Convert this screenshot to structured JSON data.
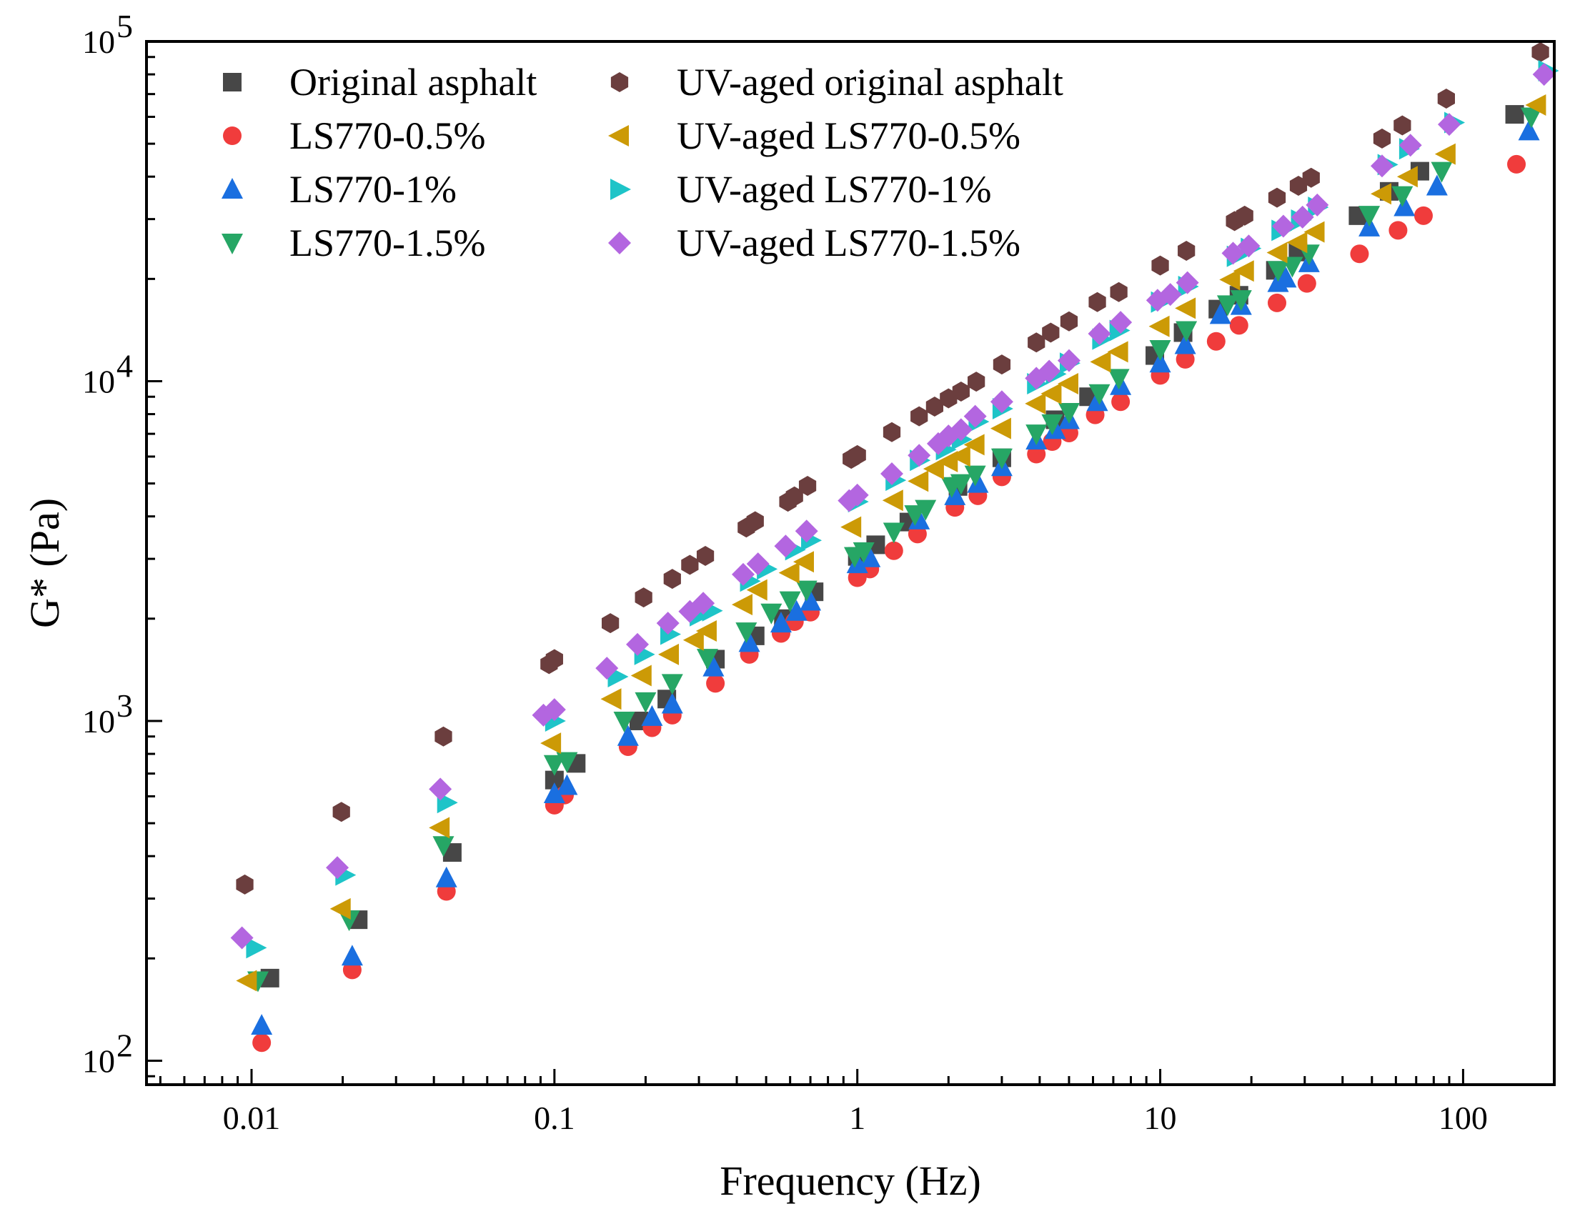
{
  "chart_data": {
    "type": "scatter",
    "xlabel": "Frequency (Hz)",
    "ylabel": "G* (Pa)",
    "xscale": "log",
    "yscale": "log",
    "xlim": [
      0.0045,
      200
    ],
    "ylim": [
      85,
      100000
    ],
    "x_ticks": [
      {
        "value": 0.01,
        "label": "0.01"
      },
      {
        "value": 0.1,
        "label": "0.1"
      },
      {
        "value": 1,
        "label": "1"
      },
      {
        "value": 10,
        "label": "10"
      },
      {
        "value": 100,
        "label": "100"
      }
    ],
    "y_ticks": [
      {
        "value": 100,
        "base": "10",
        "exp": "2"
      },
      {
        "value": 1000,
        "base": "10",
        "exp": "3"
      },
      {
        "value": 10000,
        "base": "10",
        "exp": "4"
      },
      {
        "value": 100000,
        "base": "10",
        "exp": "5"
      }
    ],
    "legend_position": "top-left, two columns",
    "series": [
      {
        "name": "Original asphalt",
        "marker": "square",
        "color": "#474747",
        "points": [
          [
            0.0115,
            175
          ],
          [
            0.0225,
            260
          ],
          [
            0.046,
            410
          ],
          [
            0.1,
            670
          ],
          [
            0.118,
            750
          ],
          [
            0.19,
            1000
          ],
          [
            0.235,
            1160
          ],
          [
            0.34,
            1520
          ],
          [
            0.46,
            1780
          ],
          [
            0.57,
            2000
          ],
          [
            0.72,
            2400
          ],
          [
            1.0,
            3050
          ],
          [
            1.15,
            3300
          ],
          [
            1.48,
            3850
          ],
          [
            2.15,
            4900
          ],
          [
            3.0,
            5950
          ],
          [
            4.5,
            7700
          ],
          [
            5.8,
            9000
          ],
          [
            9.6,
            11900
          ],
          [
            11.9,
            13900
          ],
          [
            15.5,
            16300
          ],
          [
            18.2,
            17900
          ],
          [
            24.0,
            21200
          ],
          [
            28.5,
            24000
          ],
          [
            45.0,
            30700
          ],
          [
            57.0,
            36200
          ],
          [
            72.0,
            41500
          ],
          [
            148.0,
            61000
          ]
        ]
      },
      {
        "name": "LS770-0.5%",
        "marker": "circle",
        "color": "#f03c3c",
        "points": [
          [
            0.0108,
            113
          ],
          [
            0.0215,
            185
          ],
          [
            0.044,
            315
          ],
          [
            0.1,
            565
          ],
          [
            0.108,
            605
          ],
          [
            0.175,
            840
          ],
          [
            0.21,
            955
          ],
          [
            0.245,
            1040
          ],
          [
            0.34,
            1290
          ],
          [
            0.44,
            1570
          ],
          [
            0.56,
            1810
          ],
          [
            0.62,
            1960
          ],
          [
            0.7,
            2090
          ],
          [
            1.0,
            2640
          ],
          [
            1.1,
            2800
          ],
          [
            1.32,
            3170
          ],
          [
            1.58,
            3550
          ],
          [
            2.1,
            4250
          ],
          [
            2.5,
            4600
          ],
          [
            3.0,
            5230
          ],
          [
            3.9,
            6100
          ],
          [
            4.4,
            6640
          ],
          [
            5.0,
            7040
          ],
          [
            6.1,
            7960
          ],
          [
            7.4,
            8700
          ],
          [
            10.0,
            10400
          ],
          [
            12.1,
            11600
          ],
          [
            15.3,
            13100
          ],
          [
            18.2,
            14600
          ],
          [
            24.3,
            17000
          ],
          [
            30.5,
            19400
          ],
          [
            45.5,
            23700
          ],
          [
            61.0,
            27800
          ],
          [
            74.0,
            30700
          ],
          [
            150.0,
            43500
          ]
        ]
      },
      {
        "name": "LS770-1%",
        "marker": "triangle-up",
        "color": "#1a6fe0",
        "points": [
          [
            0.0108,
            127
          ],
          [
            0.0215,
            203
          ],
          [
            0.044,
            345
          ],
          [
            0.1,
            610
          ],
          [
            0.11,
            645
          ],
          [
            0.175,
            900
          ],
          [
            0.21,
            1030
          ],
          [
            0.245,
            1120
          ],
          [
            0.335,
            1440
          ],
          [
            0.44,
            1700
          ],
          [
            0.56,
            1940
          ],
          [
            0.63,
            2100
          ],
          [
            0.7,
            2250
          ],
          [
            1.0,
            2900
          ],
          [
            1.1,
            3020
          ],
          [
            1.6,
            3900
          ],
          [
            2.1,
            4600
          ],
          [
            2.5,
            5000
          ],
          [
            3.0,
            5600
          ],
          [
            3.9,
            6700
          ],
          [
            4.5,
            7200
          ],
          [
            5.0,
            7700
          ],
          [
            6.2,
            8700
          ],
          [
            7.4,
            9700
          ],
          [
            10.0,
            11300
          ],
          [
            12.1,
            12800
          ],
          [
            15.8,
            15700
          ],
          [
            18.5,
            16700
          ],
          [
            24.5,
            19500
          ],
          [
            26.0,
            20100
          ],
          [
            31.0,
            22300
          ],
          [
            49.0,
            28400
          ],
          [
            64.0,
            32600
          ],
          [
            82.0,
            37500
          ],
          [
            165.0,
            54500
          ]
        ]
      },
      {
        "name": "LS770-1.5%",
        "marker": "triangle-down",
        "color": "#26a665",
        "points": [
          [
            0.0105,
            172
          ],
          [
            0.021,
            260
          ],
          [
            0.043,
            430
          ],
          [
            0.1,
            745
          ],
          [
            0.11,
            760
          ],
          [
            0.17,
            1000
          ],
          [
            0.2,
            1140
          ],
          [
            0.245,
            1290
          ],
          [
            0.32,
            1530
          ],
          [
            0.43,
            1830
          ],
          [
            0.52,
            2080
          ],
          [
            0.6,
            2260
          ],
          [
            0.68,
            2430
          ],
          [
            0.98,
            3050
          ],
          [
            1.05,
            3150
          ],
          [
            1.32,
            3600
          ],
          [
            1.55,
            4050
          ],
          [
            1.68,
            4200
          ],
          [
            2.05,
            4900
          ],
          [
            2.2,
            5000
          ],
          [
            2.45,
            5300
          ],
          [
            3.0,
            5950
          ],
          [
            3.9,
            7000
          ],
          [
            4.4,
            7500
          ],
          [
            5.0,
            8100
          ],
          [
            6.3,
            9200
          ],
          [
            7.3,
            10200
          ],
          [
            10.0,
            12400
          ],
          [
            12.2,
            14100
          ],
          [
            16.7,
            16800
          ],
          [
            18.5,
            17400
          ],
          [
            24.5,
            21200
          ],
          [
            27.3,
            21800
          ],
          [
            31.0,
            23700
          ],
          [
            49.0,
            30800
          ],
          [
            63.0,
            35200
          ],
          [
            85.0,
            41500
          ],
          [
            168.0,
            60000
          ]
        ]
      },
      {
        "name": "UV-aged original asphalt",
        "marker": "hexagon",
        "color": "#6b3e3e",
        "points": [
          [
            0.0095,
            330
          ],
          [
            0.0198,
            540
          ],
          [
            0.043,
            900
          ],
          [
            0.096,
            1470
          ],
          [
            0.1,
            1520
          ],
          [
            0.153,
            1940
          ],
          [
            0.197,
            2310
          ],
          [
            0.245,
            2620
          ],
          [
            0.28,
            2880
          ],
          [
            0.315,
            3060
          ],
          [
            0.43,
            3710
          ],
          [
            0.46,
            3870
          ],
          [
            0.59,
            4420
          ],
          [
            0.62,
            4580
          ],
          [
            0.685,
            4920
          ],
          [
            0.955,
            5910
          ],
          [
            1.0,
            6060
          ],
          [
            1.3,
            7080
          ],
          [
            1.6,
            7880
          ],
          [
            1.8,
            8420
          ],
          [
            2.0,
            8900
          ],
          [
            2.2,
            9320
          ],
          [
            2.47,
            9970
          ],
          [
            3.0,
            11200
          ],
          [
            3.9,
            13000
          ],
          [
            4.35,
            13900
          ],
          [
            5.0,
            15000
          ],
          [
            6.2,
            17100
          ],
          [
            7.3,
            18300
          ],
          [
            10.0,
            21900
          ],
          [
            12.2,
            24200
          ],
          [
            17.6,
            29600
          ],
          [
            19.0,
            30700
          ],
          [
            24.3,
            34700
          ],
          [
            28.6,
            37600
          ],
          [
            31.5,
            39700
          ],
          [
            54.0,
            51800
          ],
          [
            63.0,
            56600
          ],
          [
            88.0,
            67900
          ],
          [
            180.0,
            93000
          ]
        ]
      },
      {
        "name": "UV-aged  LS770-0.5%",
        "marker": "triangle-left",
        "color": "#cc9a06",
        "points": [
          [
            0.0097,
            172
          ],
          [
            0.0198,
            280
          ],
          [
            0.042,
            485
          ],
          [
            0.098,
            860
          ],
          [
            0.155,
            1160
          ],
          [
            0.195,
            1360
          ],
          [
            0.24,
            1570
          ],
          [
            0.29,
            1730
          ],
          [
            0.32,
            1840
          ],
          [
            0.42,
            2200
          ],
          [
            0.47,
            2430
          ],
          [
            0.6,
            2730
          ],
          [
            0.67,
            2940
          ],
          [
            0.96,
            3720
          ],
          [
            1.32,
            4460
          ],
          [
            1.6,
            5080
          ],
          [
            1.8,
            5520
          ],
          [
            2.0,
            5800
          ],
          [
            2.2,
            6020
          ],
          [
            2.45,
            6500
          ],
          [
            3.0,
            7260
          ],
          [
            3.9,
            8590
          ],
          [
            4.4,
            9190
          ],
          [
            5.0,
            9830
          ],
          [
            6.4,
            11400
          ],
          [
            7.3,
            12200
          ],
          [
            10.0,
            14500
          ],
          [
            12.2,
            16400
          ],
          [
            17.1,
            19900
          ],
          [
            19.0,
            21100
          ],
          [
            24.5,
            23900
          ],
          [
            28.5,
            25600
          ],
          [
            32.5,
            27500
          ],
          [
            54.0,
            35600
          ],
          [
            66.0,
            40000
          ],
          [
            88.0,
            46600
          ],
          [
            175.0,
            65000
          ]
        ]
      },
      {
        "name": "UV-aged  LS770-1%",
        "marker": "triangle-right",
        "color": "#1ec4c8",
        "points": [
          [
            0.0103,
            215
          ],
          [
            0.0203,
            352
          ],
          [
            0.044,
            575
          ],
          [
            0.1,
            1000
          ],
          [
            0.161,
            1350
          ],
          [
            0.197,
            1570
          ],
          [
            0.24,
            1800
          ],
          [
            0.3,
            2040
          ],
          [
            0.33,
            2110
          ],
          [
            0.44,
            2580
          ],
          [
            0.5,
            2800
          ],
          [
            0.62,
            3190
          ],
          [
            0.7,
            3400
          ],
          [
            1.0,
            4420
          ],
          [
            1.33,
            5110
          ],
          [
            1.6,
            5850
          ],
          [
            1.95,
            6290
          ],
          [
            2.2,
            6740
          ],
          [
            2.5,
            7600
          ],
          [
            3.0,
            8300
          ],
          [
            3.9,
            9830
          ],
          [
            4.5,
            10500
          ],
          [
            5.0,
            11300
          ],
          [
            6.4,
            13300
          ],
          [
            7.3,
            14100
          ],
          [
            10.0,
            17100
          ],
          [
            12.3,
            19000
          ],
          [
            17.8,
            23300
          ],
          [
            19.8,
            24600
          ],
          [
            25.0,
            27800
          ],
          [
            29.0,
            29800
          ],
          [
            33.0,
            32500
          ],
          [
            56.0,
            43400
          ],
          [
            66.0,
            48300
          ],
          [
            93.0,
            57700
          ],
          [
            190.0,
            82000
          ]
        ]
      },
      {
        "name": "UV-aged  LS770-1.5%",
        "marker": "diamond",
        "color": "#b366e0",
        "points": [
          [
            0.0093,
            230
          ],
          [
            0.0192,
            370
          ],
          [
            0.042,
            630
          ],
          [
            0.092,
            1040
          ],
          [
            0.1,
            1080
          ],
          [
            0.149,
            1430
          ],
          [
            0.188,
            1680
          ],
          [
            0.237,
            1940
          ],
          [
            0.28,
            2100
          ],
          [
            0.31,
            2220
          ],
          [
            0.42,
            2700
          ],
          [
            0.47,
            2900
          ],
          [
            0.58,
            3270
          ],
          [
            0.68,
            3620
          ],
          [
            0.94,
            4450
          ],
          [
            1.0,
            4620
          ],
          [
            1.3,
            5340
          ],
          [
            1.6,
            6050
          ],
          [
            1.85,
            6550
          ],
          [
            2.0,
            6900
          ],
          [
            2.2,
            7200
          ],
          [
            2.45,
            7880
          ],
          [
            3.0,
            8700
          ],
          [
            3.9,
            10200
          ],
          [
            4.3,
            10700
          ],
          [
            5.0,
            11500
          ],
          [
            6.3,
            13800
          ],
          [
            7.4,
            14900
          ],
          [
            9.8,
            17300
          ],
          [
            10.8,
            18000
          ],
          [
            12.3,
            19500
          ],
          [
            17.4,
            23800
          ],
          [
            19.6,
            25000
          ],
          [
            25.5,
            28600
          ],
          [
            29.5,
            30400
          ],
          [
            33.0,
            33000
          ],
          [
            54.0,
            43000
          ],
          [
            67.0,
            49500
          ],
          [
            90.0,
            57000
          ],
          [
            185.0,
            80000
          ]
        ]
      }
    ]
  }
}
